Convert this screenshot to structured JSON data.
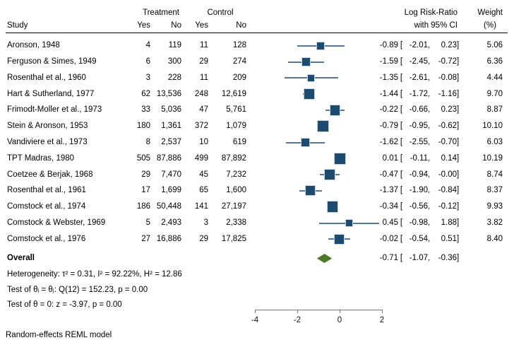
{
  "header": {
    "study": "Study",
    "treatment_group": "Treatment",
    "control_group": "Control",
    "yes": "Yes",
    "no": "No",
    "effect_line1": "Log Risk-Ratio",
    "effect_line2": "with 95% CI",
    "weight_line1": "Weight",
    "weight_line2": "(%)"
  },
  "fmt": {
    "open": "[",
    "sep": ",",
    "close": "]"
  },
  "colors": {
    "marker": "#1d4b70",
    "marker_border": "#c9d7e4",
    "ci_line": "#52779e",
    "diamond": "#4e7a28",
    "axis": "#767676"
  },
  "chart_data": {
    "type": "forest",
    "title": "",
    "xlabel": "Log Risk-Ratio",
    "x_ticks": [
      -4,
      -2,
      0,
      2
    ],
    "xlim": [
      -4,
      2
    ],
    "legend_position": "none",
    "grid": false,
    "studies": [
      {
        "name": "Aronson, 1948",
        "t_yes": "4",
        "t_no": "119",
        "c_yes": "11",
        "c_no": "128",
        "est": "-0.89",
        "lo": "-2.01",
        "hi": "0.23",
        "weight": "5.06"
      },
      {
        "name": "Ferguson & Simes, 1949",
        "t_yes": "6",
        "t_no": "300",
        "c_yes": "29",
        "c_no": "274",
        "est": "-1.59",
        "lo": "-2.45",
        "hi": "-0.72",
        "weight": "6.36"
      },
      {
        "name": "Rosenthal et al., 1960",
        "t_yes": "3",
        "t_no": "228",
        "c_yes": "11",
        "c_no": "209",
        "est": "-1.35",
        "lo": "-2.61",
        "hi": "-0.08",
        "weight": "4.44"
      },
      {
        "name": "Hart & Sutherland, 1977",
        "t_yes": "62",
        "t_no": "13,536",
        "c_yes": "248",
        "c_no": "12,619",
        "est": "-1.44",
        "lo": "-1.72",
        "hi": "-1.16",
        "weight": "9.70"
      },
      {
        "name": "Frimodt-Moller et al., 1973",
        "t_yes": "33",
        "t_no": "5,036",
        "c_yes": "47",
        "c_no": "5,761",
        "est": "-0.22",
        "lo": "-0.66",
        "hi": "0.23",
        "weight": "8.87"
      },
      {
        "name": "Stein & Aronson, 1953",
        "t_yes": "180",
        "t_no": "1,361",
        "c_yes": "372",
        "c_no": "1,079",
        "est": "-0.79",
        "lo": "-0.95",
        "hi": "-0.62",
        "weight": "10.10"
      },
      {
        "name": "Vandiviere et al., 1973",
        "t_yes": "8",
        "t_no": "2,537",
        "c_yes": "10",
        "c_no": "619",
        "est": "-1.62",
        "lo": "-2.55",
        "hi": "-0.70",
        "weight": "6.03"
      },
      {
        "name": "TPT Madras, 1980",
        "t_yes": "505",
        "t_no": "87,886",
        "c_yes": "499",
        "c_no": "87,892",
        "est": "0.01",
        "lo": "-0.11",
        "hi": "0.14",
        "weight": "10.19"
      },
      {
        "name": "Coetzee & Berjak, 1968",
        "t_yes": "29",
        "t_no": "7,470",
        "c_yes": "45",
        "c_no": "7,232",
        "est": "-0.47",
        "lo": "-0.94",
        "hi": "-0.00",
        "weight": "8.74"
      },
      {
        "name": "Rosenthal et al., 1961",
        "t_yes": "17",
        "t_no": "1,699",
        "c_yes": "65",
        "c_no": "1,600",
        "est": "-1.37",
        "lo": "-1.90",
        "hi": "-0.84",
        "weight": "8.37"
      },
      {
        "name": "Comstock et al., 1974",
        "t_yes": "186",
        "t_no": "50,448",
        "c_yes": "141",
        "c_no": "27,197",
        "est": "-0.34",
        "lo": "-0.56",
        "hi": "-0.12",
        "weight": "9.93"
      },
      {
        "name": "Comstock & Webster, 1969",
        "t_yes": "5",
        "t_no": "2,493",
        "c_yes": "3",
        "c_no": "2,338",
        "est": "0.45",
        "lo": "-0.98",
        "hi": "1.88",
        "weight": "3.82"
      },
      {
        "name": "Comstock et al., 1976",
        "t_yes": "27",
        "t_no": "16,886",
        "c_yes": "29",
        "c_no": "17,825",
        "est": "-0.02",
        "lo": "-0.54",
        "hi": "0.51",
        "weight": "8.40"
      }
    ],
    "overall": {
      "label": "Overall",
      "est": "-0.71",
      "lo": "-1.07",
      "hi": "-0.36"
    },
    "heterogeneity": "Heterogeneity: τ² = 0.31, I² = 92.22%, H² = 12.86",
    "test_homogeneity": "Test of θᵢ = θⱼ: Q(12) = 152.23, p = 0.00",
    "test_zero": "Test of θ = 0: z = -3.97, p = 0.00",
    "model": "Random-effects REML model"
  }
}
